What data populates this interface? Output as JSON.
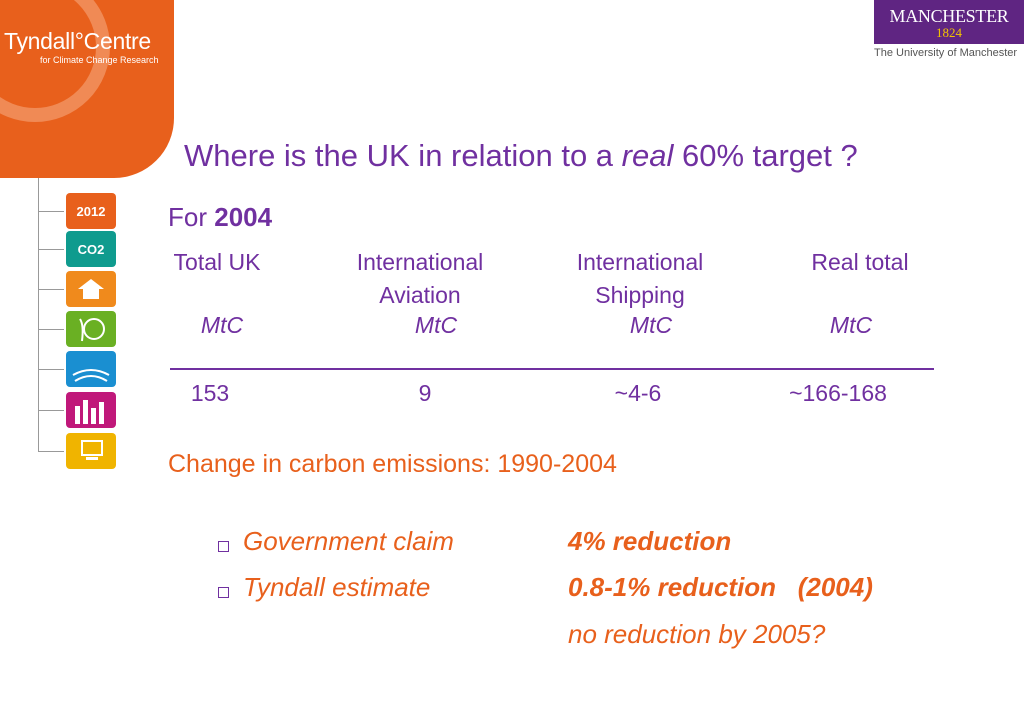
{
  "logos": {
    "tyndall_name": "Tyndall°Centre",
    "tyndall_sub": "for Climate Change Research",
    "manchester_name": "MANCHESTER",
    "manchester_year": "1824",
    "manchester_univ": "The University of Manchester"
  },
  "side_icons": [
    {
      "name": "2012-icon",
      "text": "2012",
      "color": "#e8601c"
    },
    {
      "name": "co2-icon",
      "text": "CO2",
      "color": "#0f9b8e"
    },
    {
      "name": "family-house-icon",
      "text": "",
      "color": "#f08a1c"
    },
    {
      "name": "globe-plant-icon",
      "text": "",
      "color": "#6ab023"
    },
    {
      "name": "coast-icon",
      "text": "",
      "color": "#1a8fd1"
    },
    {
      "name": "city-icon",
      "text": "",
      "color": "#c0187a"
    },
    {
      "name": "computer-icon",
      "text": "",
      "color": "#f0b400"
    }
  ],
  "title": {
    "before": "Where is the UK in relation to a ",
    "emph": "real",
    "after": " 60% target ?"
  },
  "subhead": {
    "prefix": "For ",
    "year": "2004"
  },
  "table": {
    "headers": [
      {
        "line1": "Total UK",
        "line2": ""
      },
      {
        "line1": "International",
        "line2": "Aviation"
      },
      {
        "line1": "International",
        "line2": "Shipping"
      },
      {
        "line1": "Real total",
        "line2": ""
      }
    ],
    "units": [
      "MtC",
      "MtC",
      "MtC",
      "MtC"
    ],
    "values": [
      "153",
      "9",
      "~4-6",
      "~166-168"
    ]
  },
  "change_heading": "Change in carbon emissions: 1990-2004",
  "items": [
    {
      "label": "Government claim",
      "value": "4% reduction",
      "note": ""
    },
    {
      "label": "Tyndall estimate",
      "value": "0.8-1% reduction   (2004)",
      "note": "no reduction by 2005?"
    }
  ],
  "colors": {
    "purple": "#7030a0",
    "orange": "#e8601c",
    "manchester_purple": "#5f2582"
  }
}
